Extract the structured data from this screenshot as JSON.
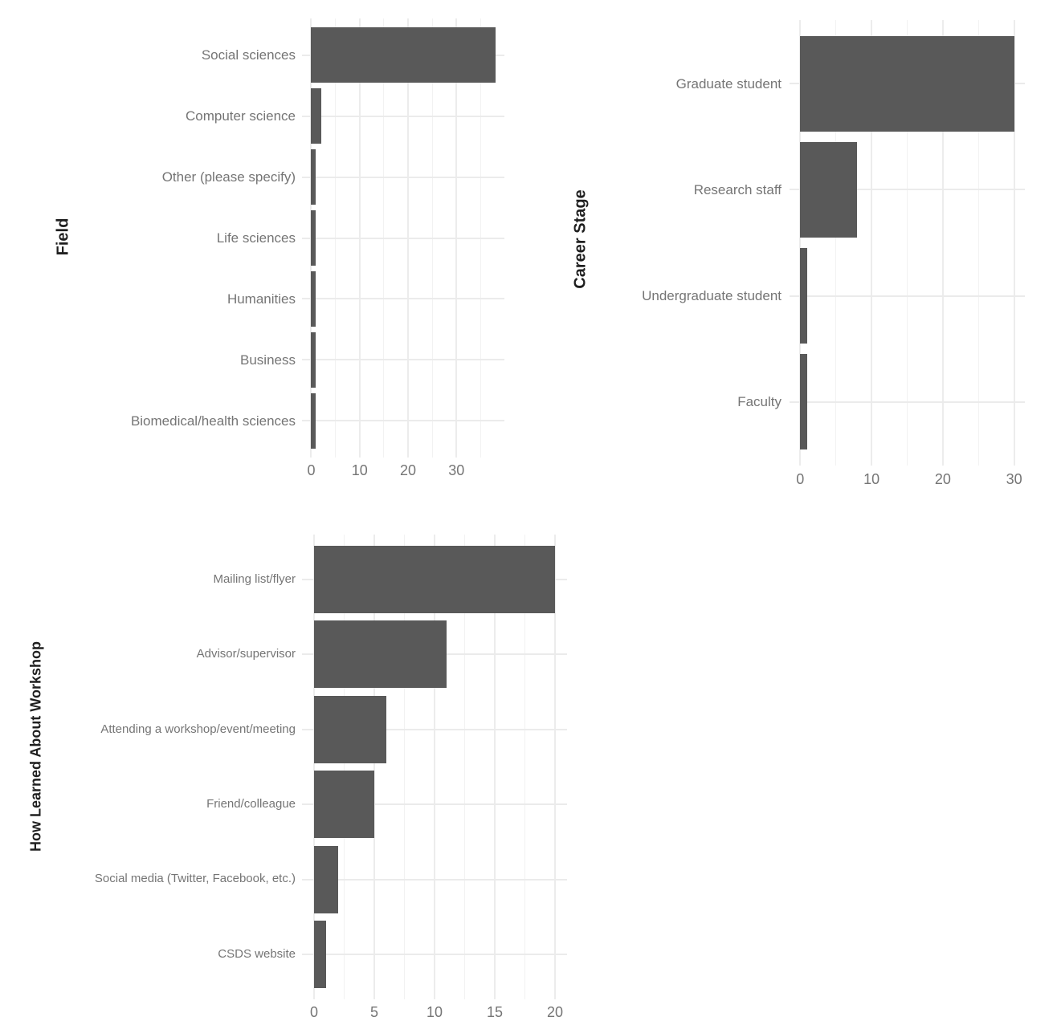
{
  "figure": {
    "description": "Three horizontal bar charts of workshop survey responses",
    "background": "#FFFFFF"
  },
  "colors": {
    "bar": "#595959",
    "grid_major": "#ECECEC",
    "grid_minor": "#F2F2F2",
    "grid_horizontal": "#EBEBEB",
    "axis_text": "#757575",
    "axis_title": "#1F1F1F",
    "background": "#FFFFFF"
  },
  "chart_data": [
    {
      "id": "field",
      "type": "bar",
      "orientation": "horizontal",
      "title": "",
      "ylabel": "Field",
      "xlabel": "",
      "categories": [
        "Social sciences",
        "Computer science",
        "Other (please specify)",
        "Life sciences",
        "Humanities",
        "Business",
        "Biomedical/health sciences"
      ],
      "values": [
        38,
        2,
        1,
        1,
        1,
        1,
        1
      ],
      "x_ticks": [
        0,
        10,
        20,
        30
      ],
      "x_minor_ticks": [
        5,
        15,
        25,
        35
      ],
      "xlim": [
        -1.9,
        39.9
      ],
      "grid": true,
      "legend": "none"
    },
    {
      "id": "career-stage",
      "type": "bar",
      "orientation": "horizontal",
      "title": "",
      "ylabel": "Career Stage",
      "xlabel": "",
      "categories": [
        "Graduate student",
        "Research staff",
        "Undergraduate student",
        "Faculty"
      ],
      "values": [
        30,
        8,
        1,
        1
      ],
      "x_ticks": [
        0,
        10,
        20,
        30
      ],
      "x_minor_ticks": [
        5,
        15,
        25
      ],
      "xlim": [
        -1.5,
        31.5
      ],
      "grid": true,
      "legend": "none"
    },
    {
      "id": "how-learned",
      "type": "bar",
      "orientation": "horizontal",
      "title": "",
      "ylabel": "How Learned About Workshop",
      "xlabel": "",
      "categories": [
        "Mailing list/flyer",
        "Advisor/supervisor",
        "Attending a workshop/event/meeting",
        "Friend/colleague",
        "Social media (Twitter, Facebook, etc.)",
        "CSDS website"
      ],
      "values": [
        20,
        11,
        6,
        5,
        2,
        1
      ],
      "x_ticks": [
        0,
        5,
        10,
        15,
        20
      ],
      "x_minor_ticks": [
        2.5,
        7.5,
        12.5,
        17.5
      ],
      "xlim": [
        -1,
        21
      ],
      "grid": true,
      "legend": "none"
    }
  ]
}
